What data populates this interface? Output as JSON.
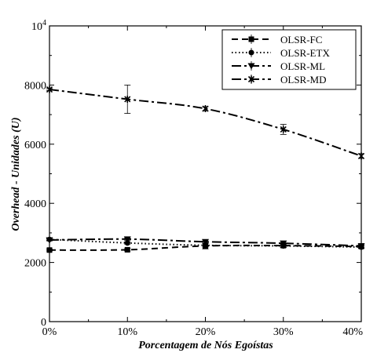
{
  "chart_data": {
    "type": "line",
    "xlabel": "Porcentagem de Nós Egoístas",
    "ylabel": "Overhead - Unidades (U)",
    "categories": [
      "0%",
      "10%",
      "20%",
      "30%",
      "40%"
    ],
    "x": [
      0,
      10,
      20,
      30,
      40
    ],
    "xlim": [
      0,
      40
    ],
    "ylim": [
      0,
      10000
    ],
    "yticks": [
      0,
      2000,
      4000,
      6000,
      8000
    ],
    "ytick_labels": [
      "0",
      "2000",
      "4000",
      "6000",
      "8000"
    ],
    "ytop_label": {
      "base": "10",
      "exp": "4"
    },
    "grid": false,
    "legend_position": "top-right",
    "series": [
      {
        "name": "OLSR-FC",
        "values": [
          2420,
          2430,
          2560,
          2570,
          2540
        ],
        "errors": [
          30,
          40,
          100,
          60,
          60
        ],
        "dash": "8,5",
        "marker": "square"
      },
      {
        "name": "OLSR-ETX",
        "values": [
          2780,
          2660,
          2580,
          2560,
          2520
        ],
        "errors": [
          30,
          40,
          60,
          50,
          40
        ],
        "dash": "1.5,3",
        "marker": "circle"
      },
      {
        "name": "OLSR-ML",
        "values": [
          2760,
          2790,
          2700,
          2650,
          2560
        ],
        "errors": [
          30,
          40,
          60,
          60,
          50
        ],
        "dash": "12,4,3,4",
        "marker": "triangle-down"
      },
      {
        "name": "OLSR-MD",
        "values": [
          7850,
          7520,
          7200,
          6500,
          5600
        ],
        "errors": [
          30,
          480,
          70,
          170,
          80
        ],
        "dash": "12,4,3,4",
        "marker": "star"
      }
    ]
  }
}
